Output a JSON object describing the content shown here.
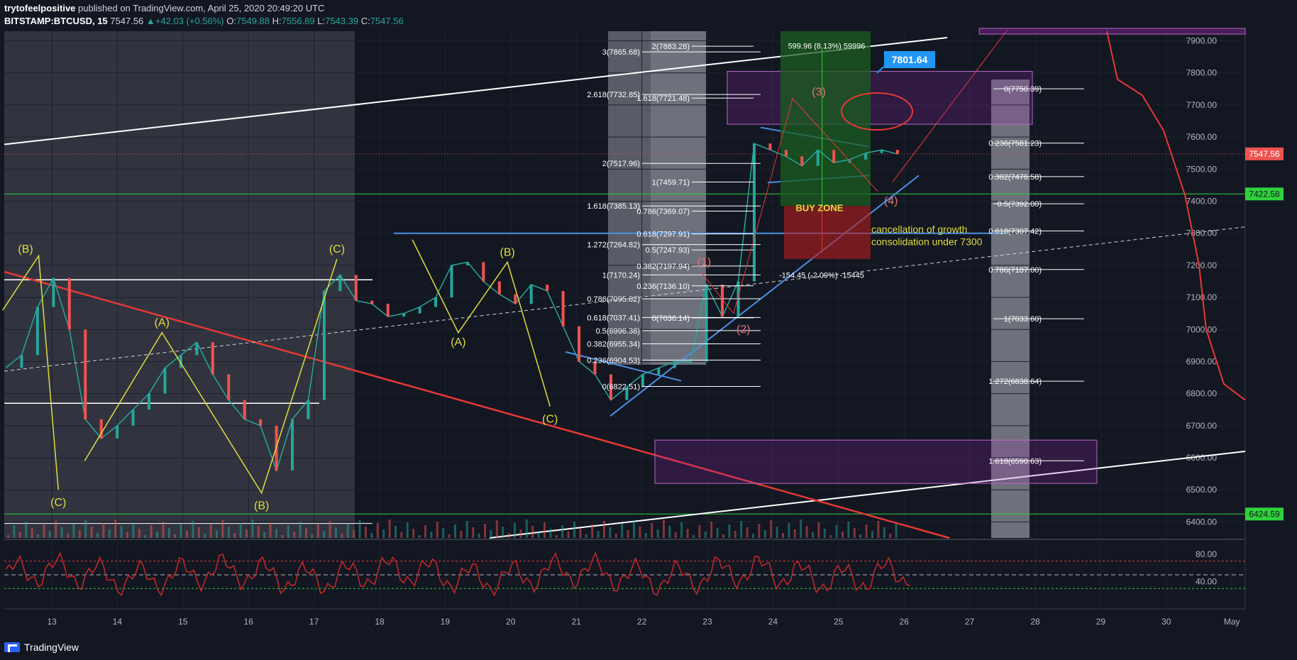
{
  "header": {
    "author": "trytofeelpositive",
    "published": "published on TradingView.com, April 25, 2020 20:49:20 UTC",
    "symbol": "BITSTAMP:BTCUSD, 15",
    "last": "7547.56",
    "change": "+42.03 (+0.56%)",
    "o_label": "O:",
    "o": "7549.88",
    "h_label": "H:",
    "h": "7556.89",
    "l_label": "L:",
    "l": "7543.39",
    "c_label": "C:",
    "c": "7547.56"
  },
  "footer": {
    "brand": "TradingView"
  },
  "colors": {
    "background": "#131722",
    "up": "#26a69a",
    "down": "#ef5350",
    "fib_blue": "#4a90e2",
    "yellow": "#e0dc3c",
    "red": "#e53935"
  },
  "chart_data": {
    "type": "line",
    "title": "",
    "xlabel": "",
    "ylabel": "",
    "ylim": [
      6350,
      7930
    ],
    "x_ticks": [
      "13",
      "14",
      "15",
      "16",
      "17",
      "18",
      "19",
      "20",
      "21",
      "22",
      "23",
      "24",
      "25",
      "26",
      "27",
      "28",
      "29",
      "30",
      "May"
    ],
    "y_ticks": [
      6400,
      6500,
      6600,
      6700,
      6800,
      6900,
      7000,
      7100,
      7200,
      7300,
      7400,
      7500,
      7600,
      7700,
      7800,
      7900
    ],
    "y_tick_labels": [
      "6400.00",
      "6500.00",
      "6600.00",
      "6700.00",
      "6800.00",
      "6900.00",
      "7000.00",
      "7100.00",
      "7200.00",
      "7300.00",
      "7400.00",
      "7500.00",
      "7600.00",
      "7700.00",
      "7800.00",
      "7900.00"
    ],
    "price_line": {
      "value": 7547.56,
      "label": "7547.56"
    },
    "horizontal_levels": [
      {
        "value": 7422.58,
        "label": "7422.58"
      },
      {
        "value": 6424.59,
        "label": "6424.59"
      }
    ],
    "series": [
      {
        "values": [
          6880,
          6920,
          7070,
          7160,
          7000,
          6720,
          6660,
          6700,
          6750,
          6800,
          6880,
          6920,
          6960,
          6860,
          6780,
          6720,
          6700,
          6560,
          6720,
          6780,
          7120,
          7170,
          7090,
          7080,
          7040,
          7050,
          7070,
          7100,
          7200,
          7210,
          7150,
          7110,
          7080,
          7140,
          7120,
          7010,
          6900,
          6860,
          6780,
          6820,
          6860,
          6880,
          6900,
          6900,
          7140,
          7040,
          7150,
          7580,
          7560,
          7540,
          7510,
          7560,
          7520,
          7530,
          7550,
          7560,
          7547
        ]
      }
    ],
    "fib_left": [
      "3(7865.68)",
      "2.618(7732.85)",
      "2(7517.96)",
      "1.618(7385.13)",
      "1.272(7264.82)",
      "1(7170.24)",
      "0.786(7095.82)",
      "0.618(7037.41)",
      "0.5(6996.38)",
      "0.382(6955.34)",
      "0.236(6904.53)",
      "0(6822.51)"
    ],
    "fib_mid": [
      "2(7883.28)",
      "1.618(7721.48)",
      "1(7459.71)",
      "0.786(7369.07)",
      "0.618(7297.91)",
      "0.5(7247.93)",
      "0.382(7197.94)",
      "0.236(7136.10)",
      "0(7036.14)"
    ],
    "fib_right": [
      "0(7750.39)",
      "0.236(7581.23)",
      "0.382(7476.58)",
      "0.5(7392.00)",
      "0.618(7307.42)",
      "0.786(7187.00)",
      "1(7033.60)",
      "1.272(6838.64)",
      "1.618(6590.63)"
    ],
    "annotations": {
      "wave_labels": [
        "(B)",
        "(C)",
        "(A)",
        "(B)",
        "(C)",
        "(B)",
        "(A)",
        "(C)",
        "(1)",
        "(2)",
        "(3)",
        "(4)"
      ],
      "buy_zone": "BUY ZONE",
      "cancel_line1": "cancellation of growth",
      "cancel_line2": "consolidation under 7300",
      "measure_up": "599.96 (8.13%) 59996",
      "measure_down": "-154.45 (-2.09%) -15445",
      "target": "7801.64"
    },
    "oscillator": {
      "ticks": [
        "80.00",
        "40.00"
      ],
      "levels": [
        70,
        50,
        30
      ]
    }
  }
}
